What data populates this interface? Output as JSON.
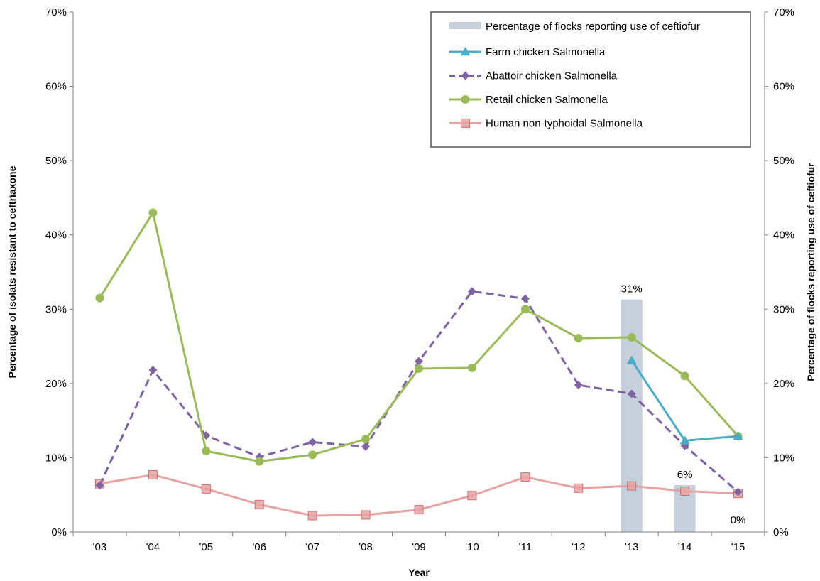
{
  "chart_data": {
    "type": "line",
    "x": [
      "'03",
      "'04",
      "'05",
      "'06",
      "'07",
      "'08",
      "'09",
      "'10",
      "'11",
      "'12",
      "'13",
      "'14",
      "'15"
    ],
    "xlabel": "Year",
    "ylabel_left": "Percentage of isolats resistant to ceftriaxone",
    "ylabel_right": "Percentage of flocks reporting use of ceftiofur",
    "ylim": [
      0,
      70
    ],
    "yticks": [
      "0%",
      "10%",
      "20%",
      "30%",
      "40%",
      "50%",
      "60%",
      "70%"
    ],
    "y2lim": [
      0,
      70
    ],
    "y2ticks": [
      "0%",
      "10%",
      "20%",
      "30%",
      "40%",
      "50%",
      "60%",
      "70%"
    ],
    "grid": false,
    "legend_position": "top-right",
    "bar_series": {
      "name": "Percentage of flocks reporting use of ceftiofur",
      "color": "#c6d0dc",
      "values": [
        null,
        null,
        null,
        null,
        null,
        null,
        null,
        null,
        null,
        null,
        31.3,
        6.3,
        0
      ],
      "labels": [
        "",
        "",
        "",
        "",
        "",
        "",
        "",
        "",
        "",
        "",
        "31%",
        "6%",
        "0%"
      ]
    },
    "series": [
      {
        "name": "Farm chicken Salmonella",
        "color": "#4bacc6",
        "marker": "triangle",
        "dash": "solid",
        "values": [
          null,
          null,
          null,
          null,
          null,
          null,
          null,
          null,
          null,
          null,
          23.1,
          12.3,
          12.9
        ]
      },
      {
        "name": "Abattoir chicken Salmonella",
        "color": "#8064a2",
        "marker": "diamond",
        "dash": "dashed",
        "values": [
          6.3,
          21.8,
          13.0,
          10.1,
          12.1,
          11.5,
          23.0,
          32.4,
          31.4,
          19.8,
          18.6,
          11.6,
          5.4
        ]
      },
      {
        "name": "Retail chicken Salmonella",
        "color": "#9bbb59",
        "marker": "circle",
        "dash": "solid",
        "values": [
          31.5,
          43.0,
          10.9,
          9.5,
          10.4,
          12.5,
          22.0,
          22.1,
          30.0,
          26.1,
          26.2,
          21.0,
          12.9
        ]
      },
      {
        "name": "Human non-typhoidal Salmonella",
        "color": "#e6a3a3",
        "marker": "square",
        "dash": "solid",
        "values": [
          6.5,
          7.7,
          5.8,
          3.7,
          2.2,
          2.3,
          3.0,
          4.9,
          7.4,
          5.9,
          6.2,
          5.5,
          5.2
        ]
      }
    ]
  }
}
